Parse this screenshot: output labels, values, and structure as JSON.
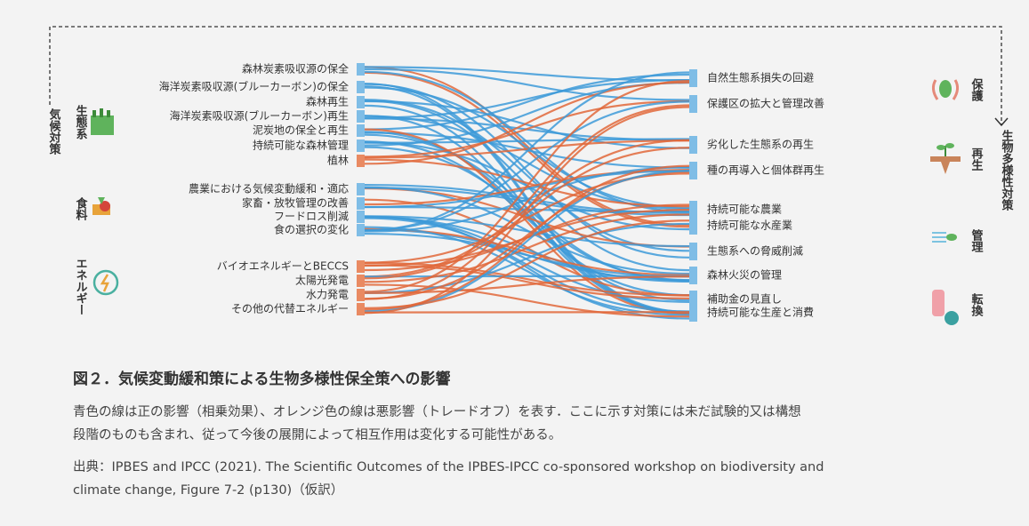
{
  "left_title": "気候対策",
  "right_title": "生物多様性対策",
  "left_groups": [
    {
      "label": "生態系"
    },
    {
      "label": "食料"
    },
    {
      "label": "エネルギー"
    }
  ],
  "left_nodes": [
    "森林炭素吸収源の保全",
    "海洋炭素吸収源(ブルーカーボン)の保全",
    "森林再生",
    "海洋炭素吸収源(ブルーカーボン)再生",
    "泥炭地の保全と再生",
    "持続可能な森林管理",
    "植林",
    "農業における気候変動緩和・適応",
    "家畜・放牧管理の改善",
    "フードロス削減",
    "食の選択の変化",
    "バイオエネルギーとBECCS",
    "太陽光発電",
    "水力発電",
    "その他の代替エネルギー"
  ],
  "right_groups": [
    {
      "label": "保護"
    },
    {
      "label": "再生"
    },
    {
      "label": "管理"
    },
    {
      "label": "転換"
    }
  ],
  "right_nodes": [
    "自然生態系損失の回避",
    "保護区の拡大と管理改善",
    "劣化した生態系の再生",
    "種の再導入と個体群再生",
    "持続可能な農業",
    "持続可能な水産業",
    "生態系への脅威削減",
    "森林火災の管理",
    "補助金の見直し",
    "持続可能な生産と消費"
  ],
  "caption": {
    "title": "図２．気候変動緩和策による生物多様性保全策への影響",
    "body": [
      "青色の線は正の影響（相乗効果）、オレンジ色の線は悪影響（トレードオフ）を表す．ここに示す対策には未だ試験的又は構想",
      "段階のものも含まれ、従って今後の展開によって相互作用は変化する可能性がある。"
    ],
    "source": [
      "出典：IPBES and IPCC (2021). The Scientific Outcomes of the IPBES-IPCC co-sponsored workshop on biodiversity and",
      "climate change, Figure 7-2 (p130)（仮訳）"
    ]
  }
}
